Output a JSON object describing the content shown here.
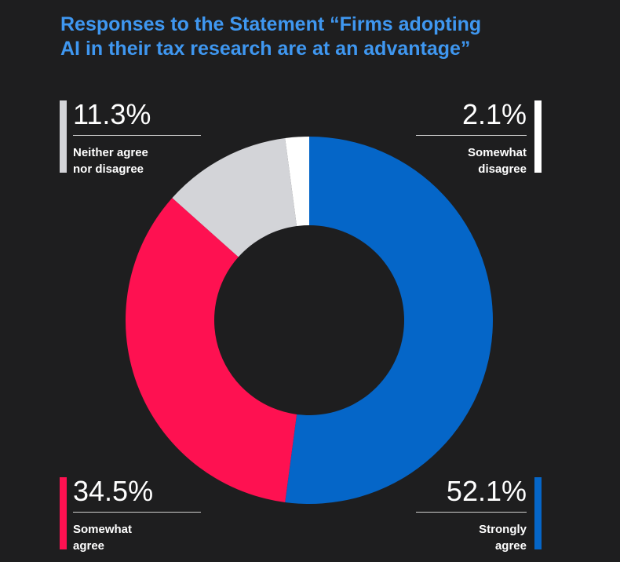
{
  "chart_data": {
    "type": "pie",
    "title_lines": [
      "Responses to the Statement “Firms adopting",
      "AI in their tax research are at an advantage”"
    ],
    "slices": [
      {
        "key": "strongly_agree",
        "label_lines": [
          "Strongly",
          "agree"
        ],
        "value": 52.1,
        "value_label": "52.1%",
        "color": "#0566c8"
      },
      {
        "key": "somewhat_agree",
        "label_lines": [
          "Somewhat",
          "agree"
        ],
        "value": 34.5,
        "value_label": "34.5%",
        "color": "#fe1151"
      },
      {
        "key": "neither",
        "label_lines": [
          "Neither agree",
          "nor disagree"
        ],
        "value": 11.3,
        "value_label": "11.3%",
        "color": "#d3d4d8"
      },
      {
        "key": "somewhat_disagree",
        "label_lines": [
          "Somewhat",
          "disagree"
        ],
        "value": 2.1,
        "value_label": "2.1%",
        "color": "#ffffff"
      }
    ],
    "start_position": "top",
    "direction": "clockwise",
    "hole": "donut",
    "legend": "callouts at four corners"
  },
  "colors": {
    "background": "#1e1e1f",
    "title": "#3f97f0",
    "text": "#ffffff",
    "rule": "#cfcfcf"
  }
}
